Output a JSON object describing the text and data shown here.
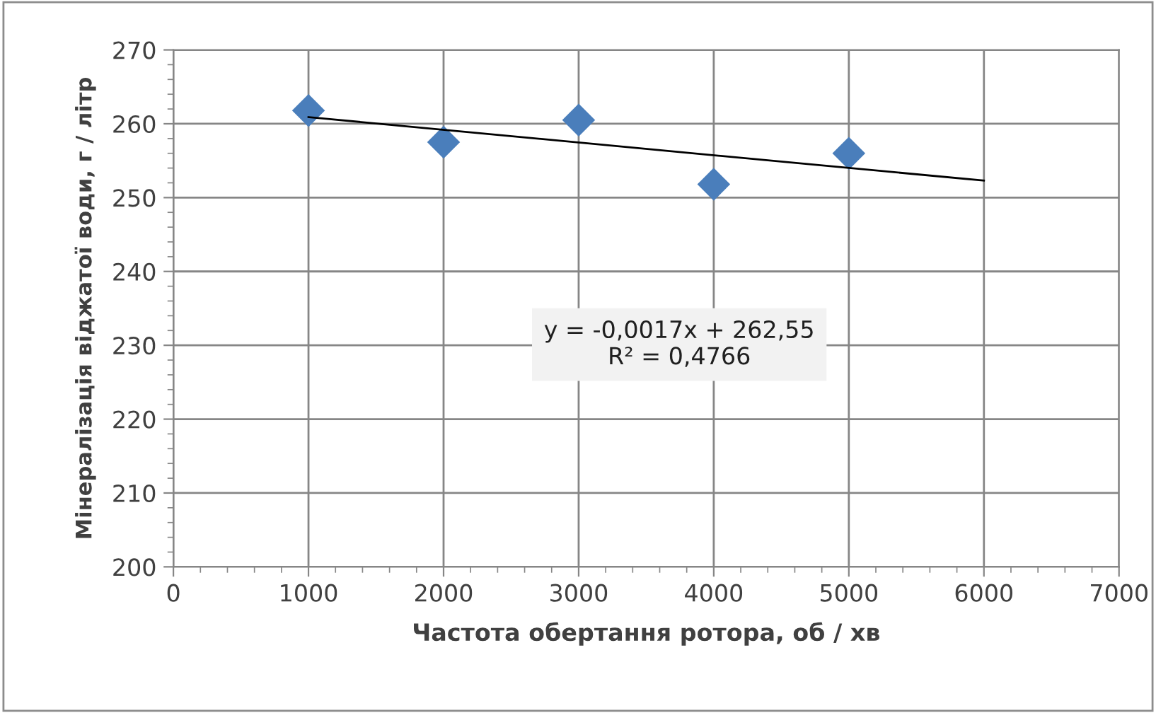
{
  "chart_data": {
    "type": "scatter",
    "xlabel": "Частота обертання ротора, об / хв",
    "ylabel": "Мінералізація віджатої води, г / літр",
    "series": [
      {
        "color": "#4a7ebb",
        "marker": "diamond",
        "x": [
          1000,
          2000,
          3000,
          4000,
          5000
        ],
        "values": [
          261.8,
          257.5,
          260.5,
          251.8,
          256.0
        ]
      },
      {
        "type": "line",
        "color": "#000000",
        "marker": "none",
        "x": [
          1000,
          6000
        ],
        "values": [
          260.9,
          252.3
        ]
      }
    ],
    "annotations": [
      "y = -0,0017x + 262,55\nR² = 0,4766"
    ],
    "xlim": [
      0,
      7000
    ],
    "xticks": [
      0,
      1000,
      2000,
      3000,
      4000,
      5000,
      6000,
      7000
    ],
    "ylim": [
      200,
      270
    ],
    "yticks": [
      200,
      210,
      220,
      230,
      240,
      250,
      260,
      270
    ],
    "grid": true,
    "legend": false
  }
}
